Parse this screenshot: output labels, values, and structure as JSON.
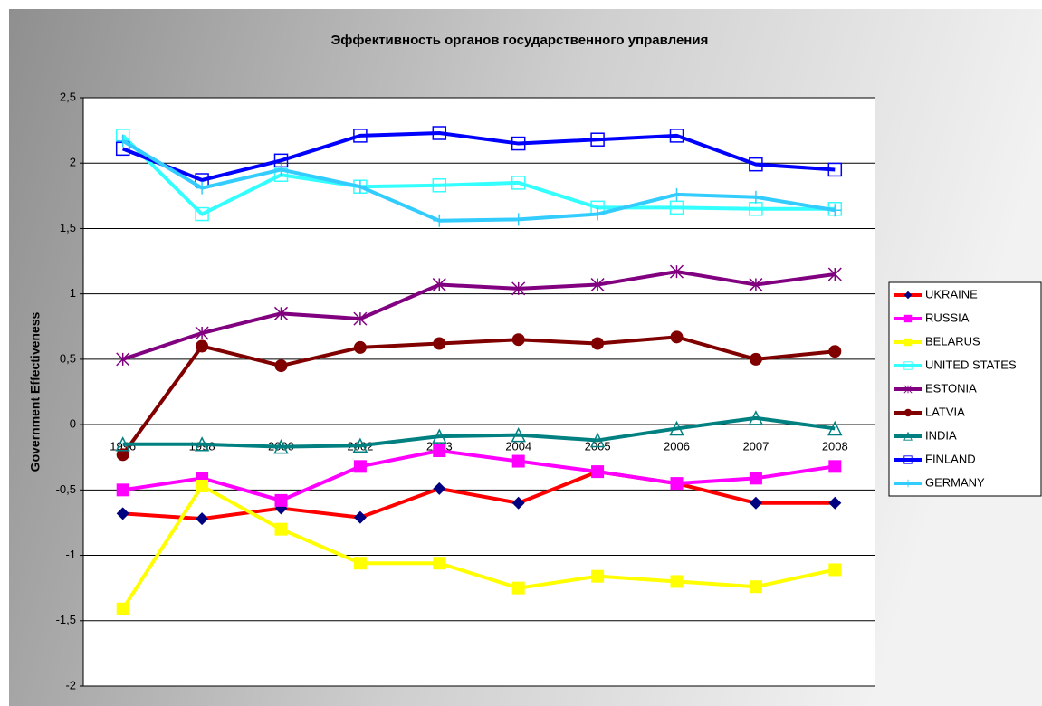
{
  "chart_data": {
    "type": "line",
    "title": "Эффективность органов государственного управления",
    "y_label": "Government Effectiveness",
    "categories": [
      "1996",
      "1998",
      "2000",
      "2002",
      "2003",
      "2004",
      "2005",
      "2006",
      "2007",
      "2008"
    ],
    "ylim": [
      -2,
      2.5
    ],
    "yticks": [
      -2,
      {
        "value": -1.5,
        "label": "-1,5"
      },
      -1,
      {
        "value": -0.5,
        "label": "-0,5"
      },
      0,
      {
        "value": 0.5,
        "label": "0,5"
      },
      1,
      {
        "value": 1.5,
        "label": "1,5"
      },
      2,
      {
        "value": 2.5,
        "label": "2,5"
      }
    ],
    "grid": true,
    "legend": "right",
    "series": [
      {
        "name": "UKRAINE",
        "color": "#ff0000",
        "marker": "diamond",
        "marker_color": "#000080",
        "values": [
          -0.68,
          -0.72,
          -0.64,
          -0.71,
          -0.49,
          -0.6,
          -0.36,
          -0.45,
          -0.6,
          -0.6
        ]
      },
      {
        "name": "RUSSIA",
        "color": "#ff00ff",
        "marker": "square",
        "marker_color": "#ff00ff",
        "values": [
          -0.5,
          -0.41,
          -0.58,
          -0.32,
          -0.2,
          -0.28,
          -0.36,
          -0.45,
          -0.41,
          -0.32
        ]
      },
      {
        "name": "BELARUS",
        "color": "#ffff00",
        "marker": "square",
        "marker_color": "#ffff00",
        "values": [
          -1.41,
          -0.47,
          -0.8,
          -1.06,
          -1.06,
          -1.25,
          -1.16,
          -1.2,
          -1.24,
          -1.11
        ]
      },
      {
        "name": "UNITED STATES",
        "color": "#33ffff",
        "marker": "open-square",
        "marker_color": "#33ffff",
        "values": [
          2.21,
          1.61,
          1.91,
          1.82,
          1.83,
          1.85,
          1.66,
          1.66,
          1.65,
          1.65
        ]
      },
      {
        "name": "ESTONIA",
        "color": "#800080",
        "marker": "star",
        "marker_color": "#800080",
        "values": [
          0.5,
          0.7,
          0.85,
          0.81,
          1.07,
          1.04,
          1.07,
          1.17,
          1.07,
          1.15
        ]
      },
      {
        "name": "LATVIA",
        "color": "#800000",
        "marker": "circle",
        "marker_color": "#800000",
        "values": [
          -0.23,
          0.6,
          0.45,
          0.59,
          0.62,
          0.65,
          0.62,
          0.67,
          0.5,
          0.56
        ]
      },
      {
        "name": "INDIA",
        "color": "#008080",
        "marker": "triangle",
        "marker_color": "#008080",
        "values": [
          -0.15,
          -0.15,
          -0.17,
          -0.16,
          -0.09,
          -0.08,
          -0.12,
          -0.03,
          0.05,
          -0.03
        ]
      },
      {
        "name": "FINLAND",
        "color": "#0000ff",
        "marker": "open-square",
        "marker_color": "#0000ff",
        "values": [
          2.11,
          1.87,
          2.02,
          2.21,
          2.23,
          2.15,
          2.18,
          2.21,
          1.99,
          1.95
        ]
      },
      {
        "name": "GERMANY",
        "color": "#33ccff",
        "marker": "plus",
        "marker_color": "#33ccff",
        "values": [
          2.17,
          1.81,
          1.95,
          1.82,
          1.56,
          1.57,
          1.61,
          1.76,
          1.74,
          1.64
        ]
      }
    ]
  }
}
